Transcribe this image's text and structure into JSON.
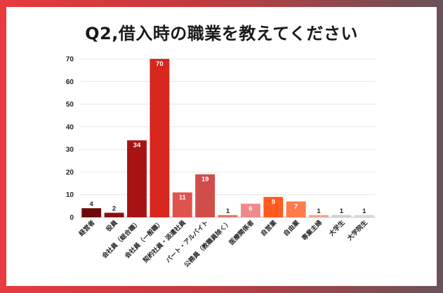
{
  "chart_data": {
    "type": "bar",
    "title": "Q2,借入時の職業を教えてください",
    "categories": [
      "経営者",
      "役員",
      "会社員（総合職）",
      "会社員（一般職）",
      "契約社員・派遣社員",
      "パート・アルバイト",
      "公務員（教職員除く）",
      "医療関係者",
      "自営業",
      "自由業",
      "専業主婦",
      "大学生",
      "大学院生"
    ],
    "values": [
      4,
      2,
      34,
      70,
      11,
      19,
      1,
      6,
      9,
      7,
      1,
      1,
      1
    ],
    "colors": [
      "#6b0a0a",
      "#8c0f0f",
      "#a61414",
      "#d7261e",
      "#e0524e",
      "#d14d4a",
      "#e07572",
      "#f08a8a",
      "#ff5a1f",
      "#ff7a4a",
      "#f5a58a",
      "#cfcfcf",
      "#d6d6d6"
    ],
    "ylim": [
      0,
      70
    ],
    "yticks": [
      0,
      10,
      20,
      30,
      40,
      50,
      60,
      70
    ],
    "grid": true,
    "legend": "none"
  }
}
